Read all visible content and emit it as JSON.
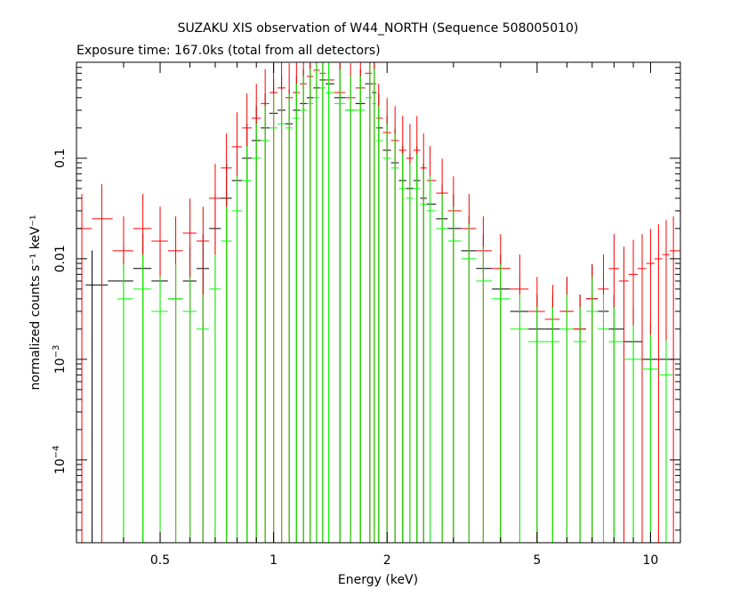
{
  "chart_data": {
    "type": "scatter",
    "title": "SUZAKU XIS observation of W44_NORTH (Sequence 508005010)",
    "subtitle": "Exposure time: 167.0ks (total from all detectors)",
    "xlabel": "Energy (keV)",
    "ylabel": "normalized counts s⁻¹ keV⁻¹",
    "xscale": "log",
    "yscale": "log",
    "xlim": [
      0.3,
      12.0
    ],
    "ylim": [
      1.5e-05,
      0.9
    ],
    "grid": false,
    "x_ticks": [
      {
        "value": 0.5,
        "label": "0.5"
      },
      {
        "value": 1,
        "label": "1"
      },
      {
        "value": 2,
        "label": "2"
      },
      {
        "value": 5,
        "label": "5"
      },
      {
        "value": 10,
        "label": "10"
      }
    ],
    "y_ticks": [
      {
        "value": 0.0001,
        "base": "10",
        "exp": "−4",
        "label": ""
      },
      {
        "value": 0.001,
        "base": "10",
        "exp": "−3",
        "label": ""
      },
      {
        "value": 0.01,
        "base": "",
        "exp": "",
        "label": "0.01"
      },
      {
        "value": 0.1,
        "base": "",
        "exp": "",
        "label": "0.1"
      }
    ],
    "series": [
      {
        "color": "#000000",
        "x": [
          0.33,
          0.4,
          0.45,
          0.5,
          0.55,
          0.6,
          0.65,
          0.7,
          0.75,
          0.8,
          0.85,
          0.9,
          0.95,
          1.0,
          1.05,
          1.1,
          1.15,
          1.2,
          1.25,
          1.3,
          1.35,
          1.4,
          1.5,
          1.6,
          1.7,
          1.8,
          1.85,
          1.9,
          2.0,
          2.1,
          2.2,
          2.3,
          2.4,
          2.5,
          2.6,
          2.8,
          3.0,
          3.3,
          3.6,
          4.0,
          4.5,
          5.0,
          5.5,
          6.0,
          6.5,
          7.0,
          7.5,
          8.0,
          9.0,
          10.0,
          11.0
        ],
        "y": [
          0.0055,
          0.006,
          0.008,
          0.006,
          0.004,
          0.006,
          0.008,
          0.02,
          0.04,
          0.06,
          0.1,
          0.15,
          0.2,
          0.28,
          0.3,
          0.22,
          0.3,
          0.35,
          0.4,
          0.5,
          0.6,
          0.55,
          0.4,
          0.3,
          0.35,
          0.55,
          0.45,
          0.2,
          0.12,
          0.09,
          0.06,
          0.05,
          0.06,
          0.04,
          0.035,
          0.025,
          0.02,
          0.012,
          0.008,
          0.005,
          0.003,
          0.002,
          0.002,
          0.003,
          0.002,
          0.004,
          0.003,
          0.002,
          0.0015,
          0.001,
          0.001
        ]
      },
      {
        "color": "#ff0000",
        "x": [
          0.31,
          0.35,
          0.4,
          0.45,
          0.5,
          0.55,
          0.6,
          0.65,
          0.7,
          0.75,
          0.8,
          0.85,
          0.9,
          0.95,
          1.0,
          1.05,
          1.1,
          1.15,
          1.2,
          1.25,
          1.3,
          1.35,
          1.4,
          1.5,
          1.6,
          1.7,
          1.8,
          1.85,
          1.9,
          2.0,
          2.1,
          2.2,
          2.3,
          2.4,
          2.5,
          2.6,
          2.8,
          3.0,
          3.3,
          3.6,
          4.0,
          4.5,
          5.0,
          5.5,
          6.0,
          6.5,
          7.0,
          7.5,
          8.0,
          8.5,
          9.0,
          9.5,
          10.0,
          10.5,
          11.0,
          11.5
        ],
        "y": [
          0.02,
          0.025,
          0.012,
          0.02,
          0.015,
          0.012,
          0.018,
          0.015,
          0.04,
          0.08,
          0.13,
          0.2,
          0.25,
          0.35,
          0.45,
          0.5,
          0.4,
          0.45,
          0.55,
          0.65,
          0.75,
          0.7,
          0.6,
          0.45,
          0.4,
          0.5,
          0.7,
          0.55,
          0.25,
          0.18,
          0.15,
          0.12,
          0.1,
          0.12,
          0.08,
          0.06,
          0.045,
          0.03,
          0.02,
          0.012,
          0.008,
          0.005,
          0.003,
          0.0025,
          0.003,
          0.002,
          0.004,
          0.005,
          0.008,
          0.006,
          0.007,
          0.008,
          0.009,
          0.01,
          0.011,
          0.012
        ]
      },
      {
        "color": "#00ff00",
        "x": [
          0.4,
          0.45,
          0.5,
          0.55,
          0.6,
          0.65,
          0.7,
          0.75,
          0.8,
          0.85,
          0.9,
          0.95,
          1.0,
          1.05,
          1.1,
          1.15,
          1.2,
          1.25,
          1.3,
          1.35,
          1.4,
          1.5,
          1.6,
          1.7,
          1.8,
          1.85,
          1.9,
          2.0,
          2.1,
          2.2,
          2.3,
          2.4,
          2.5,
          2.6,
          2.8,
          3.0,
          3.3,
          3.6,
          4.0,
          4.5,
          5.0,
          5.5,
          6.0,
          6.5,
          7.0,
          7.5,
          8.0,
          9.0,
          10.0,
          11.0
        ],
        "y": [
          0.004,
          0.005,
          0.003,
          0.004,
          0.003,
          0.002,
          0.005,
          0.015,
          0.03,
          0.06,
          0.1,
          0.15,
          0.2,
          0.22,
          0.2,
          0.25,
          0.3,
          0.35,
          0.4,
          0.5,
          0.45,
          0.35,
          0.3,
          0.3,
          0.4,
          0.35,
          0.15,
          0.1,
          0.08,
          0.05,
          0.04,
          0.05,
          0.035,
          0.03,
          0.02,
          0.015,
          0.01,
          0.006,
          0.004,
          0.002,
          0.0015,
          0.0015,
          0.002,
          0.0015,
          0.003,
          0.002,
          0.0015,
          0.001,
          0.0008,
          0.0007
        ]
      }
    ]
  }
}
